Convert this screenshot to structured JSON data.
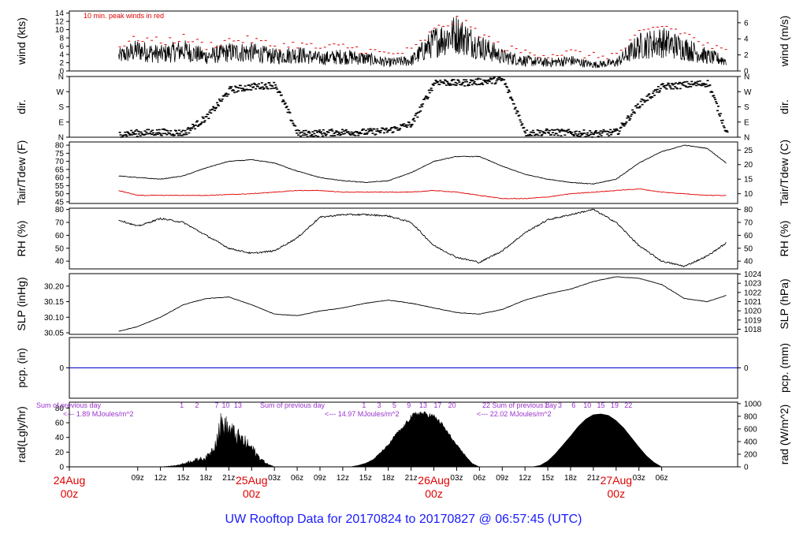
{
  "title": "UW Rooftop Data for 20170824  to  20170827 @ 06:57:45  (UTC)",
  "colors": {
    "peak": "#e00000",
    "dew": "#e00000",
    "pcp": "#0000cc",
    "title": "#1a1aff",
    "day": "#e00000",
    "note": "#9933cc"
  },
  "chart_data": [
    {
      "type": "line",
      "id": "wind",
      "ylabel_left": "wind (kts)",
      "ylabel_right": "wind (m/s)",
      "annotation": "10 min. peak winds in red",
      "left_ticks": [
        0,
        2,
        4,
        6,
        8,
        10,
        12,
        14
      ],
      "right_ticks": [
        0,
        2,
        4,
        6
      ],
      "ylim": [
        0,
        14.5
      ],
      "x": [
        6.5,
        9,
        12,
        15,
        18,
        21,
        24,
        27,
        30,
        33,
        36,
        39,
        42,
        45,
        48,
        51,
        54,
        57,
        60,
        63,
        66,
        69,
        72,
        75,
        78,
        81,
        84,
        86.5
      ],
      "series": [
        {
          "values": [
            3.5,
            5,
            4,
            5,
            3.5,
            4.5,
            4.5,
            3.5,
            4,
            3,
            3.5,
            3,
            2,
            2.5,
            7,
            9,
            6,
            3.5,
            2.5,
            2,
            2.5,
            1.5,
            2,
            6,
            7,
            5.5,
            3.5,
            2.5
          ]
        },
        {
          "values": [
            6,
            8,
            7,
            8,
            6,
            7.5,
            7.5,
            6,
            6.5,
            5.5,
            6,
            5,
            4,
            5,
            10,
            12.5,
            9,
            5.5,
            4.5,
            4,
            4.5,
            3.5,
            4,
            9,
            11,
            9,
            6,
            4.5
          ]
        }
      ]
    },
    {
      "type": "scatter",
      "id": "dir",
      "ylabel_left": "dir.",
      "ylabel_right": "dir.",
      "ticks": [
        "N",
        "E",
        "S",
        "W",
        "N"
      ],
      "ylim": [
        0,
        360
      ],
      "x": [
        6.5,
        9,
        12,
        15,
        18,
        21,
        24,
        27,
        30,
        33,
        36,
        39,
        42,
        45,
        48,
        51,
        54,
        57,
        60,
        63,
        66,
        69,
        72,
        75,
        78,
        81,
        84,
        86.5
      ],
      "series": [
        {
          "values": [
            20,
            25,
            30,
            25,
            120,
            280,
            300,
            310,
            20,
            25,
            30,
            30,
            40,
            80,
            330,
            320,
            330,
            340,
            25,
            30,
            25,
            20,
            30,
            200,
            300,
            310,
            320,
            20
          ]
        }
      ]
    },
    {
      "type": "line",
      "id": "temp",
      "ylabel_left": "Tair/Tdew (F)",
      "ylabel_right": "Tair/Tdew (C)",
      "left_ticks": [
        45,
        50,
        55,
        60,
        65,
        70,
        75,
        80
      ],
      "right_ticks": [
        10,
        15,
        20,
        25
      ],
      "ylim": [
        44,
        82
      ],
      "x": [
        6.5,
        9,
        12,
        15,
        18,
        21,
        24,
        27,
        30,
        33,
        36,
        39,
        42,
        45,
        48,
        51,
        54,
        57,
        60,
        63,
        66,
        69,
        72,
        75,
        78,
        81,
        84,
        86.5
      ],
      "series": [
        {
          "name": "Tair",
          "values": [
            61,
            60,
            59,
            61,
            66,
            70,
            71,
            69,
            64,
            60,
            58,
            57,
            58,
            63,
            70,
            73,
            73,
            67,
            62,
            59,
            57,
            56,
            59,
            69,
            76,
            80,
            78,
            69
          ]
        },
        {
          "name": "Tdew",
          "values": [
            52,
            49,
            49,
            49,
            49,
            49.5,
            50,
            51,
            52,
            52,
            51,
            51,
            51,
            51,
            52,
            51,
            49,
            47,
            47,
            48,
            50,
            51,
            52,
            53,
            51,
            50,
            49,
            49
          ]
        }
      ]
    },
    {
      "type": "line",
      "id": "rh",
      "ylabel_left": "RH (%)",
      "ylabel_right": "RH (%)",
      "left_ticks": [
        40,
        50,
        60,
        70,
        80
      ],
      "right_ticks": [
        40,
        50,
        60,
        70,
        80
      ],
      "ylim": [
        34,
        81
      ],
      "x": [
        6.5,
        9,
        12,
        15,
        18,
        21,
        24,
        27,
        30,
        33,
        36,
        39,
        42,
        45,
        48,
        51,
        54,
        57,
        60,
        63,
        66,
        69,
        72,
        75,
        78,
        81,
        84,
        86.5
      ],
      "series": [
        {
          "values": [
            72,
            67,
            73,
            70,
            60,
            50,
            46,
            48,
            58,
            74,
            76,
            76,
            75,
            70,
            52,
            43,
            39,
            48,
            62,
            72,
            76,
            80,
            70,
            52,
            40,
            36,
            44,
            54
          ]
        }
      ]
    },
    {
      "type": "line",
      "id": "slp",
      "ylabel_left": "SLP (inHg)",
      "ylabel_right": "SLP (hPa)",
      "left_ticks": [
        30.05,
        30.1,
        30.15,
        30.2
      ],
      "right_ticks": [
        1018,
        1019,
        1020,
        1021,
        1022,
        1023,
        1024
      ],
      "ylim": [
        30.045,
        30.24
      ],
      "x": [
        6.5,
        9,
        12,
        15,
        18,
        21,
        24,
        27,
        30,
        33,
        36,
        39,
        42,
        45,
        48,
        51,
        54,
        57,
        60,
        63,
        66,
        69,
        72,
        75,
        78,
        81,
        84,
        86.5
      ],
      "series": [
        {
          "values": [
            30.055,
            30.07,
            30.1,
            30.14,
            30.16,
            30.165,
            30.14,
            30.11,
            30.105,
            30.12,
            30.13,
            30.145,
            30.155,
            30.145,
            30.13,
            30.115,
            30.11,
            30.125,
            30.155,
            30.175,
            30.19,
            30.215,
            30.23,
            30.225,
            30.205,
            30.16,
            30.15,
            30.17
          ]
        }
      ]
    },
    {
      "type": "line",
      "id": "pcp",
      "ylabel_left": "pcp. (in)",
      "ylabel_right": "pcp. (mm)",
      "left_ticks": [
        0
      ],
      "right_ticks": [
        0
      ],
      "ylim": [
        -1,
        1
      ],
      "x": [
        6.5,
        86.5
      ],
      "series": [
        {
          "values": [
            0,
            0
          ]
        }
      ]
    },
    {
      "type": "area",
      "id": "rad",
      "ylabel_left": "rad(Lgly/hr)",
      "ylabel_right": "rad (W/m^2)",
      "left_ticks": [
        0,
        20,
        40,
        60,
        80
      ],
      "right_ticks": [
        0,
        200,
        400,
        600,
        800,
        1000
      ],
      "ylim": [
        0,
        88
      ],
      "x": [
        6.5,
        12,
        14,
        15,
        16,
        17,
        18,
        19,
        20,
        21,
        22,
        23,
        24,
        25,
        26,
        27,
        37,
        38,
        39,
        40,
        41,
        42,
        43,
        44,
        45,
        46,
        47,
        48,
        49,
        50,
        51,
        53,
        54,
        61,
        62,
        63,
        64,
        65,
        66,
        67,
        68,
        69,
        70,
        71,
        72,
        73,
        74,
        75,
        76,
        77,
        78,
        86.5
      ],
      "series": [
        {
          "values": [
            0,
            0,
            2,
            5,
            9,
            12,
            14,
            30,
            70,
            60,
            50,
            40,
            30,
            15,
            5,
            0,
            0,
            2,
            5,
            10,
            20,
            30,
            45,
            55,
            70,
            75,
            73,
            70,
            60,
            45,
            30,
            5,
            0,
            0,
            2,
            8,
            18,
            30,
            42,
            55,
            65,
            71,
            72,
            70,
            63,
            53,
            40,
            27,
            15,
            6,
            0,
            0
          ]
        }
      ],
      "notes": [
        {
          "line1": "Sum of previous day",
          "line2": "<--- 1.89 MJoules/m^2"
        },
        {
          "line1": "Sum of previous day",
          "line2": "<--- 14.97 MJoules/m^2"
        },
        {
          "line1": "22 Sum of previous day",
          "line2": "<--- 22.02 MJoules/m^2"
        }
      ],
      "hour_labels": [
        {
          "x": 14.8,
          "text": "1"
        },
        {
          "x": 16.8,
          "text": "2"
        },
        {
          "x": 19.4,
          "text": "7"
        },
        {
          "x": 20.6,
          "text": "10"
        },
        {
          "x": 22.2,
          "text": "13"
        },
        {
          "x": 38.8,
          "text": "1"
        },
        {
          "x": 40.8,
          "text": "3"
        },
        {
          "x": 42.8,
          "text": "5"
        },
        {
          "x": 44.7,
          "text": "9"
        },
        {
          "x": 46.6,
          "text": "13"
        },
        {
          "x": 48.5,
          "text": "17"
        },
        {
          "x": 50.4,
          "text": "20"
        },
        {
          "x": 62.8,
          "text": "1"
        },
        {
          "x": 64.6,
          "text": "3"
        },
        {
          "x": 66.4,
          "text": "6"
        },
        {
          "x": 68.2,
          "text": "10"
        },
        {
          "x": 70,
          "text": "15"
        },
        {
          "x": 71.8,
          "text": "19"
        },
        {
          "x": 73.6,
          "text": "22"
        }
      ]
    }
  ],
  "x_axis": {
    "hour_ticks": [
      {
        "x": 9,
        "text": "09z"
      },
      {
        "x": 12,
        "text": "12z"
      },
      {
        "x": 15,
        "text": "15z"
      },
      {
        "x": 18,
        "text": "18z"
      },
      {
        "x": 21,
        "text": "21z"
      },
      {
        "x": 27,
        "text": "03z"
      },
      {
        "x": 30,
        "text": "06z"
      },
      {
        "x": 33,
        "text": "09z"
      },
      {
        "x": 36,
        "text": "12z"
      },
      {
        "x": 39,
        "text": "15z"
      },
      {
        "x": 42,
        "text": "18z"
      },
      {
        "x": 45,
        "text": "21z"
      },
      {
        "x": 51,
        "text": "03z"
      },
      {
        "x": 54,
        "text": "06z"
      },
      {
        "x": 57,
        "text": "09z"
      },
      {
        "x": 60,
        "text": "12z"
      },
      {
        "x": 63,
        "text": "15z"
      },
      {
        "x": 66,
        "text": "18z"
      },
      {
        "x": 69,
        "text": "21z"
      },
      {
        "x": 75,
        "text": "03z"
      },
      {
        "x": 78,
        "text": "06z"
      }
    ],
    "day_labels": [
      {
        "x": 0,
        "date": "24Aug",
        "hour": "00z"
      },
      {
        "x": 24,
        "date": "25Aug",
        "hour": "00z"
      },
      {
        "x": 48,
        "date": "26Aug",
        "hour": "00z"
      },
      {
        "x": 72,
        "date": "27Aug",
        "hour": "00z"
      }
    ]
  }
}
